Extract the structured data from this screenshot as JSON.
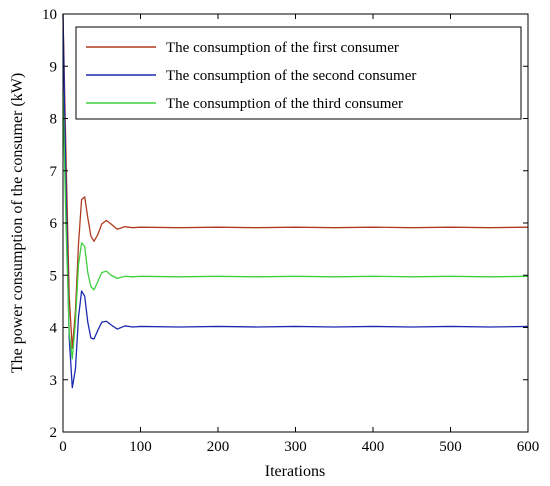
{
  "chart_data": {
    "type": "line",
    "title": "",
    "xlabel": "Iterations",
    "ylabel": "The power consumption of the consumer (kW)",
    "xlim": [
      0,
      600
    ],
    "ylim": [
      2,
      10
    ],
    "xticks": [
      0,
      100,
      200,
      300,
      400,
      500,
      600
    ],
    "yticks": [
      2,
      3,
      4,
      5,
      6,
      7,
      8,
      9,
      10
    ],
    "xtick_labels": [
      "0",
      "100",
      "200",
      "300",
      "400",
      "500",
      "600"
    ],
    "ytick_labels": [
      "2",
      "3",
      "4",
      "5",
      "6",
      "7",
      "8",
      "9",
      "10"
    ],
    "grid": false,
    "legend_position": "top-right",
    "series": [
      {
        "name": "The consumption of the first consumer",
        "color": "#b03a1e",
        "x": [
          0,
          4,
          8,
          12,
          16,
          20,
          24,
          28,
          32,
          36,
          40,
          45,
          50,
          56,
          62,
          70,
          80,
          90,
          100,
          150,
          200,
          250,
          300,
          350,
          400,
          450,
          500,
          550,
          600
        ],
        "y": [
          10.0,
          7.2,
          4.6,
          3.6,
          4.3,
          5.6,
          6.45,
          6.5,
          6.1,
          5.75,
          5.65,
          5.78,
          5.98,
          6.05,
          5.98,
          5.88,
          5.93,
          5.91,
          5.92,
          5.91,
          5.92,
          5.91,
          5.92,
          5.91,
          5.92,
          5.91,
          5.92,
          5.91,
          5.92
        ]
      },
      {
        "name": "The consumption of the second consumer",
        "color": "#1c2ab0",
        "x": [
          0,
          4,
          8,
          12,
          16,
          20,
          24,
          28,
          32,
          36,
          40,
          45,
          50,
          56,
          62,
          70,
          80,
          90,
          100,
          150,
          200,
          250,
          300,
          350,
          400,
          450,
          500,
          550,
          600
        ],
        "y": [
          10.0,
          6.5,
          3.8,
          2.85,
          3.2,
          4.2,
          4.7,
          4.6,
          4.1,
          3.8,
          3.78,
          3.95,
          4.1,
          4.12,
          4.05,
          3.97,
          4.03,
          4.01,
          4.02,
          4.01,
          4.02,
          4.01,
          4.02,
          4.01,
          4.02,
          4.01,
          4.02,
          4.01,
          4.02
        ]
      },
      {
        "name": "The consumption of the third consumer",
        "color": "#3ed13e",
        "x": [
          0,
          4,
          8,
          12,
          16,
          20,
          24,
          28,
          32,
          36,
          40,
          45,
          50,
          56,
          62,
          70,
          80,
          90,
          100,
          150,
          200,
          250,
          300,
          350,
          400,
          450,
          500,
          550,
          600
        ],
        "y": [
          8.5,
          5.9,
          3.9,
          3.4,
          4.1,
          5.2,
          5.62,
          5.55,
          5.05,
          4.78,
          4.72,
          4.88,
          5.05,
          5.08,
          5.0,
          4.94,
          4.98,
          4.97,
          4.98,
          4.97,
          4.98,
          4.97,
          4.98,
          4.97,
          4.98,
          4.97,
          4.98,
          4.97,
          4.98
        ]
      }
    ]
  }
}
